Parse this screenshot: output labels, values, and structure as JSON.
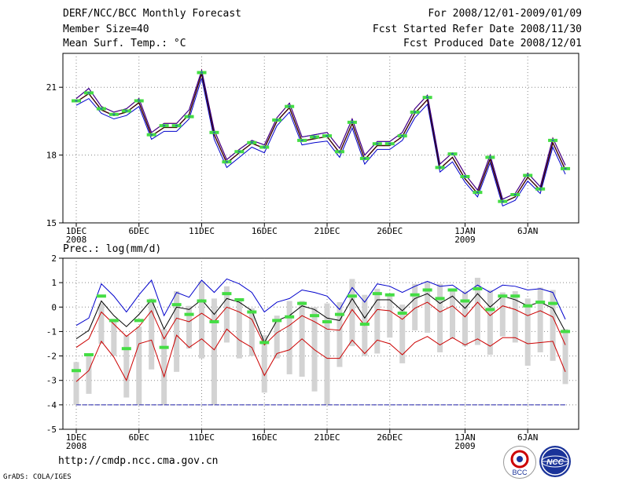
{
  "header": {
    "title": "DERF/NCC/BCC Monthly Forecast",
    "member_size": "Member Size=40",
    "variable": "Mean Surf. Temp.: °C",
    "period": "For 2008/12/01-2009/01/09",
    "fcst_started": "Fcst Started Refer Date 2008/11/30",
    "fcst_produced": "Fcst Produced Date 2008/12/01"
  },
  "footer": {
    "url": "http://cmdp.ncc.cma.gov.cn",
    "grads": "GrADS: COLA/IGES",
    "logo_left": "BCC",
    "logo_right": "NCC"
  },
  "colors": {
    "ensemble_mean": "#000000",
    "upper_bound": "#0000cc",
    "lower_bound": "#cc0000",
    "observation": "#44dd44",
    "spread_bar": "#d3d3d3",
    "grid": "#888888"
  },
  "chart_data": [
    {
      "type": "line",
      "title": "Mean Surf. Temp.: °C",
      "xlabel": "",
      "ylabel": "",
      "ylim": [
        15,
        22.5
      ],
      "yticks": [
        "15",
        "18",
        "21"
      ],
      "xticks": [
        "1DEC",
        "6DEC",
        "11DEC",
        "16DEC",
        "21DEC",
        "26DEC",
        "1JAN",
        "6JAN"
      ],
      "xtick_subs": [
        "2008",
        "",
        "",
        "",
        "",
        "",
        "2009",
        ""
      ],
      "x": [
        1,
        2,
        3,
        4,
        5,
        6,
        7,
        8,
        9,
        10,
        11,
        12,
        13,
        14,
        15,
        16,
        17,
        18,
        19,
        20,
        21,
        22,
        23,
        24,
        25,
        26,
        27,
        28,
        29,
        30,
        31,
        32,
        33,
        34,
        35,
        36,
        37,
        38,
        39,
        40
      ],
      "series": [
        {
          "name": "ensemble mean",
          "values": [
            20.35,
            20.72,
            20.0,
            19.75,
            19.9,
            20.32,
            18.85,
            19.22,
            19.22,
            19.8,
            21.6,
            18.9,
            17.65,
            18.1,
            18.52,
            18.3,
            19.5,
            20.1,
            18.62,
            18.72,
            18.82,
            18.1,
            19.4,
            17.8,
            18.42,
            18.42,
            18.82,
            19.85,
            20.45,
            17.4,
            17.9,
            16.95,
            16.3,
            17.82,
            15.9,
            16.15,
            17.02,
            16.45,
            18.55,
            17.35
          ]
        },
        {
          "name": "upper",
          "values": [
            20.5,
            20.95,
            20.15,
            19.9,
            20.05,
            20.5,
            19.0,
            19.4,
            19.4,
            20.0,
            21.75,
            19.1,
            17.8,
            18.25,
            18.65,
            18.45,
            19.65,
            20.3,
            18.8,
            18.9,
            19.0,
            18.3,
            19.6,
            18.0,
            18.6,
            18.6,
            19.0,
            20.05,
            20.65,
            17.6,
            18.1,
            17.15,
            16.45,
            18.0,
            16.05,
            16.3,
            17.2,
            16.6,
            18.75,
            17.55
          ]
        },
        {
          "name": "lower",
          "values": [
            20.2,
            20.5,
            19.85,
            19.6,
            19.75,
            20.15,
            18.7,
            19.05,
            19.05,
            19.6,
            21.4,
            18.7,
            17.45,
            17.9,
            18.35,
            18.1,
            19.3,
            19.9,
            18.45,
            18.55,
            18.62,
            17.9,
            19.2,
            17.6,
            18.25,
            18.25,
            18.65,
            19.65,
            20.25,
            17.25,
            17.7,
            16.8,
            16.15,
            17.65,
            15.75,
            16.0,
            16.85,
            16.3,
            18.35,
            17.15
          ]
        },
        {
          "name": "observation",
          "values": [
            20.4,
            20.75,
            20.05,
            19.8,
            19.95,
            20.4,
            18.9,
            19.3,
            19.3,
            19.7,
            21.65,
            19.0,
            17.7,
            18.15,
            18.55,
            18.35,
            19.55,
            20.15,
            18.65,
            18.8,
            18.85,
            18.15,
            19.45,
            17.85,
            18.5,
            18.5,
            18.85,
            19.9,
            20.55,
            17.45,
            18.05,
            17.05,
            16.35,
            17.9,
            15.95,
            16.25,
            17.1,
            16.5,
            18.65,
            17.4
          ]
        }
      ]
    },
    {
      "type": "line",
      "title": "Prec.: log(mm/d)",
      "xlabel": "",
      "ylabel": "",
      "ylim": [
        -5,
        2
      ],
      "yticks": [
        "-5",
        "-4",
        "-3",
        "-2",
        "-1",
        "0",
        "1",
        "2"
      ],
      "xticks": [
        "1DEC",
        "6DEC",
        "11DEC",
        "16DEC",
        "21DEC",
        "26DEC",
        "1JAN",
        "6JAN"
      ],
      "xtick_subs": [
        "2008",
        "",
        "",
        "",
        "",
        "",
        "2009",
        ""
      ],
      "x": [
        1,
        2,
        3,
        4,
        5,
        6,
        7,
        8,
        9,
        10,
        11,
        12,
        13,
        14,
        15,
        16,
        17,
        18,
        19,
        20,
        21,
        22,
        23,
        24,
        25,
        26,
        27,
        28,
        29,
        30,
        31,
        32,
        33,
        34,
        35,
        36,
        37,
        38,
        39,
        40
      ],
      "series": [
        {
          "name": "upper",
          "values": [
            -0.75,
            -0.45,
            0.95,
            0.45,
            -0.2,
            0.5,
            1.1,
            -0.35,
            0.6,
            0.4,
            1.1,
            0.6,
            1.15,
            0.95,
            0.6,
            -0.2,
            0.2,
            0.35,
            0.7,
            0.6,
            0.45,
            -0.1,
            0.8,
            0.2,
            0.95,
            0.85,
            0.6,
            0.85,
            1.05,
            0.85,
            0.9,
            0.55,
            0.9,
            0.6,
            0.9,
            0.85,
            0.7,
            0.75,
            0.6,
            -0.5
          ]
        },
        {
          "name": "ensemble mean",
          "values": [
            -1.3,
            -0.95,
            0.25,
            -0.35,
            -0.8,
            -0.3,
            0.3,
            -0.9,
            0.0,
            -0.1,
            0.3,
            -0.3,
            0.35,
            0.2,
            -0.15,
            -1.45,
            -0.55,
            -0.35,
            0.05,
            -0.1,
            -0.45,
            -0.55,
            0.35,
            -0.45,
            0.3,
            0.3,
            -0.15,
            0.35,
            0.55,
            0.15,
            0.45,
            -0.05,
            0.55,
            0.0,
            0.45,
            0.3,
            0.05,
            0.2,
            -0.05,
            -1.0
          ]
        },
        {
          "name": "lower",
          "values": [
            -1.65,
            -1.3,
            -0.2,
            -0.7,
            -1.2,
            -0.8,
            -0.15,
            -1.3,
            -0.45,
            -0.6,
            -0.25,
            -0.6,
            0.0,
            -0.2,
            -0.5,
            -1.55,
            -1.05,
            -0.75,
            -0.35,
            -0.6,
            -0.9,
            -0.95,
            -0.1,
            -0.75,
            -0.1,
            -0.15,
            -0.5,
            -0.05,
            0.2,
            -0.2,
            0.05,
            -0.4,
            0.2,
            -0.35,
            0.05,
            -0.1,
            -0.35,
            -0.15,
            -0.4,
            -1.55
          ]
        },
        {
          "name": "lower2",
          "values": [
            -3.05,
            -2.6,
            -1.4,
            -2.05,
            -3.0,
            -1.5,
            -1.35,
            -2.85,
            -1.15,
            -1.65,
            -1.3,
            -1.75,
            -0.9,
            -1.35,
            -1.65,
            -2.8,
            -1.9,
            -1.75,
            -1.3,
            -1.75,
            -2.1,
            -2.1,
            -1.35,
            -1.9,
            -1.35,
            -1.5,
            -1.95,
            -1.45,
            -1.2,
            -1.55,
            -1.25,
            -1.55,
            -1.3,
            -1.6,
            -1.25,
            -1.25,
            -1.5,
            -1.45,
            -1.4,
            -2.65
          ]
        },
        {
          "name": "spread_top",
          "values": [
            -2.25,
            -1.9,
            0.15,
            -0.55,
            -1.15,
            -0.8,
            0.35,
            -0.9,
            0.65,
            0.05,
            1.05,
            0.35,
            0.85,
            0.35,
            -0.05,
            -1.15,
            -0.35,
            0.25,
            0.25,
            0.0,
            0.15,
            0.2,
            1.15,
            0.5,
            0.75,
            0.45,
            0.1,
            0.95,
            1.05,
            0.95,
            0.65,
            0.65,
            1.2,
            0.7,
            0.6,
            0.65,
            0.35,
            0.8,
            0.7,
            -0.9
          ]
        },
        {
          "name": "spread_bottom",
          "values": [
            -4.0,
            -3.55,
            -1.5,
            -2.0,
            -3.7,
            -4.0,
            -2.55,
            -4.0,
            -2.65,
            -1.7,
            -2.1,
            -4.0,
            -1.45,
            -2.1,
            -2.0,
            -3.5,
            -2.1,
            -2.75,
            -2.85,
            -3.45,
            -4.0,
            -2.45,
            -1.6,
            -2.0,
            -1.9,
            -1.25,
            -2.3,
            -0.95,
            -1.05,
            -1.85,
            -1.3,
            -1.6,
            -1.55,
            -1.95,
            -1.2,
            -1.45,
            -2.4,
            -1.85,
            -2.2,
            -3.15
          ]
        },
        {
          "name": "observation",
          "values": [
            -2.6,
            -1.95,
            0.45,
            -0.55,
            -1.7,
            -0.55,
            0.25,
            -1.65,
            0.1,
            -0.3,
            0.25,
            -0.6,
            0.55,
            0.3,
            -0.2,
            -1.45,
            -0.55,
            -0.4,
            0.15,
            -0.35,
            -0.6,
            -0.3,
            0.45,
            -0.7,
            0.55,
            0.5,
            -0.25,
            0.5,
            0.7,
            0.35,
            0.7,
            0.25,
            0.75,
            -0.1,
            0.45,
            0.45,
            0.05,
            0.2,
            0.15,
            -1.0
          ]
        },
        {
          "name": "floor",
          "values": [
            -4,
            -4,
            -4,
            -4,
            -4,
            -4,
            -4,
            -4,
            -4,
            -4,
            -4,
            -4,
            -4,
            -4,
            -4,
            -4,
            -4,
            -4,
            -4,
            -4,
            -4,
            -4,
            -4,
            -4,
            -4,
            -4,
            -4,
            -4,
            -4,
            -4,
            -4,
            -4,
            -4,
            -4,
            -4,
            -4,
            -4,
            -4,
            -4,
            -4
          ]
        }
      ]
    }
  ]
}
